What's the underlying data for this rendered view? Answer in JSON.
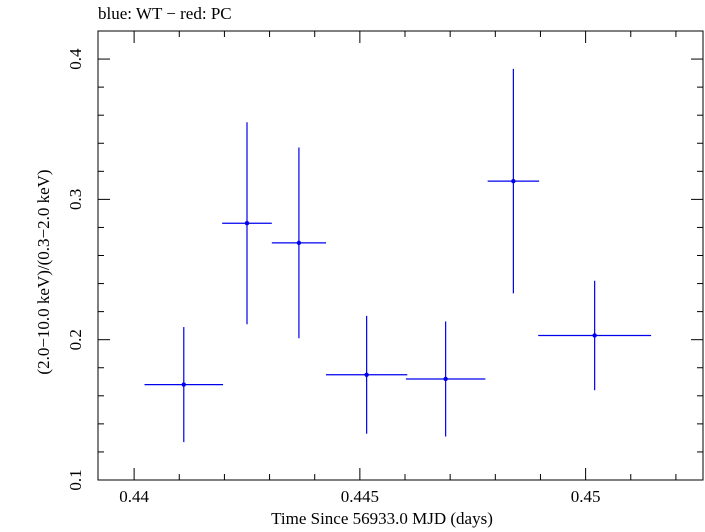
{
  "chart_data": {
    "type": "scatter",
    "title": "blue: WT − red: PC",
    "xlabel": "Time Since 56933.0 MJD (days)",
    "ylabel": "(2.0−10.0 keV)/(0.3−2.0 keV)",
    "xlim": [
      0.4392,
      0.4526
    ],
    "ylim": [
      0.1,
      0.42
    ],
    "x_ticks": [
      0.44,
      0.445,
      0.45
    ],
    "x_tick_labels": [
      "0.44",
      "0.445",
      "0.45"
    ],
    "y_ticks": [
      0.1,
      0.2,
      0.3,
      0.4
    ],
    "y_tick_labels": [
      "0.1",
      "0.2",
      "0.3",
      "0.4"
    ],
    "grid": false,
    "series": [
      {
        "color": "#0000ee",
        "points": [
          {
            "x": 0.4411,
            "xerr": 0.00087,
            "y": 0.168,
            "yerr": 0.041
          },
          {
            "x": 0.4425,
            "xerr": 0.00055,
            "y": 0.283,
            "yerr": 0.072
          },
          {
            "x": 0.44365,
            "xerr": 0.0006,
            "y": 0.269,
            "yerr": 0.068
          },
          {
            "x": 0.44515,
            "xerr": 0.0009,
            "y": 0.175,
            "yerr": 0.042
          },
          {
            "x": 0.4469,
            "xerr": 0.00088,
            "y": 0.172,
            "yerr": 0.041
          },
          {
            "x": 0.4484,
            "xerr": 0.00057,
            "y": 0.313,
            "yerr": 0.08
          },
          {
            "x": 0.4502,
            "xerr": 0.00125,
            "y": 0.203,
            "yerr": 0.039
          }
        ]
      }
    ]
  }
}
